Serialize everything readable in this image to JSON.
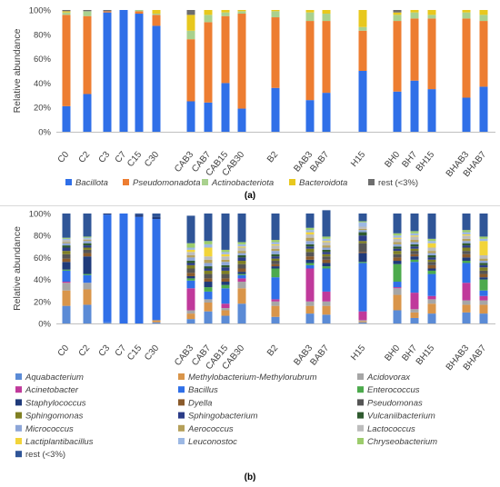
{
  "chart_data": [
    {
      "type": "bar",
      "stacked": true,
      "panel_label": "(a)",
      "ylabel": "Relative abundance",
      "ylim": [
        0,
        100
      ],
      "yticks": [
        "0%",
        "20%",
        "40%",
        "60%",
        "80%",
        "100%"
      ],
      "grid": false,
      "legend_position": "bottom",
      "categories": [
        "C0",
        "C2",
        "C3",
        "C7",
        "C15",
        "C30",
        "CAB3",
        "CAB7",
        "CAB15",
        "CAB30",
        "B2",
        "BAB3",
        "BAB7",
        "H15",
        "BH0",
        "BH7",
        "BH15",
        "BHAB3",
        "BHAB7"
      ],
      "series": [
        {
          "name": "Bacillota",
          "italic": true,
          "color": "#2f6fe8",
          "values": [
            21,
            31,
            98,
            100,
            97,
            87,
            25,
            24,
            40,
            19,
            36,
            26,
            32,
            50,
            33,
            42,
            35,
            28,
            37
          ]
        },
        {
          "name": "Pseudomonadota",
          "italic": true,
          "color": "#ed7d31",
          "values": [
            75,
            64,
            1,
            0,
            2,
            9,
            51,
            66,
            55,
            78,
            58,
            65,
            59,
            33,
            58,
            51,
            58,
            65,
            54
          ]
        },
        {
          "name": "Actinobacteriota",
          "italic": true,
          "color": "#a9d18e",
          "values": [
            2,
            4,
            0,
            0,
            1,
            1,
            7,
            6,
            3,
            2,
            5,
            7,
            6,
            3,
            5,
            5,
            3,
            5,
            5
          ]
        },
        {
          "name": "Bacteroidota",
          "italic": true,
          "color": "#e8c81e",
          "values": [
            1,
            0,
            0,
            0,
            0,
            3,
            13,
            4,
            2,
            1,
            1,
            2,
            3,
            14,
            2,
            2,
            4,
            2,
            4
          ]
        },
        {
          "name": "rest (<3%)",
          "italic": false,
          "color": "#6e6e6e",
          "values": [
            1,
            1,
            1,
            0,
            0,
            0,
            4,
            0,
            0,
            0,
            0,
            0,
            0,
            0,
            2,
            0,
            0,
            0,
            0
          ]
        }
      ]
    },
    {
      "type": "bar",
      "stacked": true,
      "panel_label": "(b)",
      "ylabel": "Relative abundance",
      "ylim": [
        0,
        100
      ],
      "yticks": [
        "0%",
        "20%",
        "40%",
        "60%",
        "80%",
        "100%"
      ],
      "grid": false,
      "legend_position": "bottom",
      "categories": [
        "C0",
        "C2",
        "C3",
        "C7",
        "C15",
        "C30",
        "CAB3",
        "CAB7",
        "CAB15",
        "CAB30",
        "B2",
        "BAB3",
        "BAB7",
        "H15",
        "BH0",
        "BH7",
        "BH15",
        "BHAB3",
        "BHAB7"
      ],
      "series": [
        {
          "name": "Aquabacterium",
          "italic": true,
          "color": "#5b8bd6",
          "values": [
            16,
            17,
            1,
            0,
            0,
            1,
            4,
            11,
            7,
            18,
            6,
            9,
            8,
            1,
            12,
            5,
            9,
            10,
            9
          ]
        },
        {
          "name": "Methylobacterium-Methylorubrum",
          "italic": true,
          "color": "#d9954a",
          "values": [
            14,
            14,
            0,
            0,
            0,
            2,
            5,
            8,
            5,
            14,
            10,
            7,
            8,
            1,
            14,
            5,
            9,
            7,
            8
          ]
        },
        {
          "name": "Acidovorax",
          "italic": true,
          "color": "#a6a6a6",
          "values": [
            7,
            6,
            0,
            0,
            0,
            0,
            3,
            3,
            2,
            6,
            4,
            4,
            4,
            1,
            6,
            3,
            4,
            4,
            4
          ]
        },
        {
          "name": "Acinetobacter",
          "italic": true,
          "color": "#c0399b",
          "values": [
            1,
            0,
            0,
            0,
            0,
            0,
            20,
            0,
            4,
            3,
            2,
            30,
            9,
            8,
            1,
            15,
            3,
            16,
            4
          ]
        },
        {
          "name": "Bacillus",
          "italic": true,
          "color": "#2f6fe8",
          "values": [
            10,
            7,
            98,
            100,
            97,
            92,
            7,
            7,
            14,
            3,
            20,
            3,
            21,
            44,
            5,
            28,
            20,
            18,
            5
          ]
        },
        {
          "name": "Enterococcus",
          "italic": true,
          "color": "#4caa4c",
          "values": [
            1,
            1,
            0,
            0,
            0,
            0,
            2,
            4,
            3,
            1,
            8,
            2,
            2,
            1,
            16,
            2,
            3,
            2,
            10
          ]
        },
        {
          "name": "Staphylococcus",
          "italic": true,
          "color": "#1f3a7a",
          "values": [
            7,
            16,
            1,
            0,
            2,
            2,
            2,
            5,
            3,
            2,
            2,
            3,
            3,
            8,
            3,
            3,
            2,
            3,
            2
          ]
        },
        {
          "name": "Dyella",
          "italic": true,
          "color": "#8a5a2b",
          "values": [
            3,
            3,
            0,
            0,
            0,
            0,
            3,
            3,
            3,
            3,
            2,
            3,
            3,
            1,
            3,
            2,
            3,
            3,
            3
          ]
        },
        {
          "name": "Pseudomonas",
          "italic": true,
          "color": "#555555",
          "values": [
            4,
            3,
            0,
            0,
            0,
            0,
            4,
            4,
            4,
            4,
            3,
            4,
            3,
            8,
            3,
            3,
            3,
            3,
            3
          ]
        },
        {
          "name": "Sphingomonas",
          "italic": true,
          "color": "#7f7f22",
          "values": [
            3,
            2,
            0,
            0,
            0,
            0,
            3,
            3,
            3,
            3,
            2,
            3,
            2,
            2,
            3,
            2,
            2,
            3,
            3
          ]
        },
        {
          "name": "Sphingobacterium",
          "italic": true,
          "color": "#2b3c88",
          "values": [
            3,
            2,
            0,
            0,
            0,
            0,
            2,
            2,
            3,
            3,
            2,
            2,
            2,
            5,
            2,
            2,
            2,
            2,
            2
          ]
        },
        {
          "name": "Vulcaniibacterium",
          "italic": true,
          "color": "#2f5a2f",
          "values": [
            2,
            2,
            0,
            0,
            0,
            0,
            2,
            2,
            2,
            2,
            2,
            2,
            2,
            3,
            2,
            2,
            2,
            2,
            2
          ]
        },
        {
          "name": "Micrococcus",
          "italic": true,
          "color": "#8da6d8",
          "values": [
            2,
            2,
            0,
            0,
            0,
            0,
            3,
            3,
            3,
            2,
            3,
            3,
            2,
            2,
            2,
            2,
            2,
            2,
            2
          ]
        },
        {
          "name": "Aerococcus",
          "italic": true,
          "color": "#b5a05a",
          "values": [
            1,
            1,
            0,
            0,
            0,
            0,
            2,
            3,
            2,
            2,
            2,
            3,
            2,
            1,
            2,
            2,
            2,
            2,
            2
          ]
        },
        {
          "name": "Lactococcus",
          "italic": true,
          "color": "#bdbdbd",
          "values": [
            2,
            1,
            0,
            0,
            0,
            0,
            3,
            3,
            3,
            3,
            3,
            3,
            3,
            2,
            3,
            3,
            3,
            3,
            3
          ]
        },
        {
          "name": "Lactiplantibacillus",
          "italic": true,
          "color": "#f2d43a",
          "values": [
            0,
            0,
            0,
            0,
            0,
            0,
            2,
            8,
            2,
            1,
            1,
            2,
            1,
            0,
            1,
            1,
            4,
            1,
            13
          ]
        },
        {
          "name": "Leuconostoc",
          "italic": true,
          "color": "#9cb8e4",
          "values": [
            1,
            1,
            0,
            0,
            0,
            0,
            2,
            3,
            2,
            2,
            2,
            2,
            2,
            4,
            2,
            2,
            2,
            2,
            2
          ]
        },
        {
          "name": "Chryseobacterium",
          "italic": true,
          "color": "#9ccc6c",
          "values": [
            1,
            1,
            0,
            0,
            0,
            0,
            4,
            3,
            2,
            2,
            2,
            2,
            2,
            1,
            2,
            2,
            2,
            2,
            2
          ]
        },
        {
          "name": "rest (<3%)",
          "italic": false,
          "color": "#2f5597",
          "values": [
            22,
            21,
            0,
            0,
            1,
            3,
            25,
            25,
            33,
            26,
            24,
            13,
            24,
            7,
            18,
            16,
            23,
            15,
            21
          ]
        }
      ]
    }
  ]
}
